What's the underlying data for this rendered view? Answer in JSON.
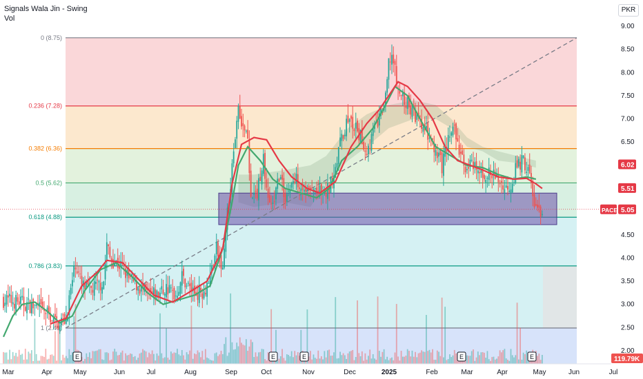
{
  "legend": {
    "title": "Signals Wala Jin - Swing",
    "vol": "Vol"
  },
  "currency": "PKR",
  "colors": {
    "up": "#26a69a",
    "down": "#ef5350",
    "ma": "#e53946",
    "ema": "#43a86f",
    "zone": "#7a5fb5",
    "trend": "#787b86"
  },
  "chart_data": {
    "type": "candlestick",
    "title": "Signals Wala Jin - Swing",
    "currency": "PKR",
    "x_ticks": [
      "Mar",
      "Apr",
      "May",
      "Jun",
      "Jul",
      "Aug",
      "Sep",
      "Oct",
      "Nov",
      "Dec",
      "2025",
      "Feb",
      "Mar",
      "Apr",
      "May",
      "Jun",
      "Jul"
    ],
    "y_ticks": [
      2.0,
      2.5,
      3.0,
      3.5,
      4.0,
      4.5,
      5.0,
      5.5,
      6.0,
      6.5,
      7.0,
      7.5,
      8.0,
      8.5,
      9.0
    ],
    "ylim": [
      2.0,
      9.0
    ],
    "fib_levels": [
      {
        "ratio": "0",
        "value": 8.75,
        "label": "0 (8.75)",
        "color": "#787b86",
        "zone": "#f8c9cc"
      },
      {
        "ratio": "0.236",
        "value": 7.28,
        "label": "0.236 (7.28)",
        "color": "#e53946",
        "zone": "#fbe0bd"
      },
      {
        "ratio": "0.382",
        "value": 6.36,
        "label": "0.382 (6.36)",
        "color": "#f57c00",
        "zone": "#d9edd2"
      },
      {
        "ratio": "0.5",
        "value": 5.62,
        "label": "0.5 (5.62)",
        "color": "#43a86f",
        "zone": "#cbebd8"
      },
      {
        "ratio": "0.618",
        "value": 4.88,
        "label": "0.618 (4.88)",
        "color": "#089981",
        "zone": "#c7ecef"
      },
      {
        "ratio": "0.786",
        "value": 3.83,
        "label": "0.786 (3.83)",
        "color": "#089981",
        "zone": "#c7ecef"
      },
      {
        "ratio": "1",
        "value": 2.49,
        "label": "1 (2.49)",
        "color": "#787b86",
        "zone": "#c9daf8"
      }
    ],
    "support_zone": {
      "low": 4.72,
      "high": 5.4
    },
    "price_labels": [
      {
        "text": "6.02",
        "value": 6.02,
        "color": "#e53946"
      },
      {
        "text": "5.51",
        "value": 5.51,
        "color": "#e53946"
      },
      {
        "text": "5.05",
        "value": 5.05,
        "color": "#e53946",
        "tag": "PACE"
      }
    ],
    "volume_label": "119.79K",
    "earnings_markers": [
      "E",
      "E",
      "E",
      "E",
      "E"
    ],
    "candle_keypoints": [
      [
        0,
        3.1
      ],
      [
        10,
        3.05
      ],
      [
        20,
        2.95
      ],
      [
        28,
        2.8
      ],
      [
        34,
        2.6
      ],
      [
        40,
        2.7
      ],
      [
        44,
        3.5
      ],
      [
        46,
        3.9
      ],
      [
        50,
        3.4
      ],
      [
        55,
        3.3
      ],
      [
        60,
        3.4
      ],
      [
        64,
        3.5
      ],
      [
        66,
        4.3
      ],
      [
        68,
        4.0
      ],
      [
        72,
        3.9
      ],
      [
        76,
        3.8
      ],
      [
        80,
        3.55
      ],
      [
        86,
        3.4
      ],
      [
        92,
        3.2
      ],
      [
        98,
        3.2
      ],
      [
        104,
        3.35
      ],
      [
        110,
        3.2
      ],
      [
        114,
        3.6
      ],
      [
        118,
        3.4
      ],
      [
        122,
        3.25
      ],
      [
        128,
        3.3
      ],
      [
        132,
        3.6
      ],
      [
        136,
        4.2
      ],
      [
        140,
        3.7
      ],
      [
        142,
        4.7
      ],
      [
        144,
        5.3
      ],
      [
        146,
        6.0
      ],
      [
        148,
        6.5
      ],
      [
        150,
        7.3
      ],
      [
        152,
        7.0
      ],
      [
        156,
        6.5
      ],
      [
        158,
        5.2
      ],
      [
        162,
        5.4
      ],
      [
        166,
        6.2
      ],
      [
        168,
        5.4
      ],
      [
        172,
        5.1
      ],
      [
        176,
        5.8
      ],
      [
        180,
        5.3
      ],
      [
        184,
        5.6
      ],
      [
        188,
        5.7
      ],
      [
        192,
        5.5
      ],
      [
        196,
        5.4
      ],
      [
        200,
        5.5
      ],
      [
        204,
        5.3
      ],
      [
        208,
        5.5
      ],
      [
        212,
        6.0
      ],
      [
        216,
        6.6
      ],
      [
        220,
        7.0
      ],
      [
        224,
        6.8
      ],
      [
        228,
        6.6
      ],
      [
        232,
        6.3
      ],
      [
        236,
        6.7
      ],
      [
        240,
        7.0
      ],
      [
        244,
        7.4
      ],
      [
        246,
        8.2
      ],
      [
        248,
        8.4
      ],
      [
        250,
        8.0
      ],
      [
        252,
        7.6
      ],
      [
        256,
        7.4
      ],
      [
        260,
        7.2
      ],
      [
        264,
        7.0
      ],
      [
        268,
        6.8
      ],
      [
        272,
        6.6
      ],
      [
        276,
        6.2
      ],
      [
        280,
        6.0
      ],
      [
        284,
        6.6
      ],
      [
        288,
        6.8
      ],
      [
        290,
        6.4
      ],
      [
        294,
        6.0
      ],
      [
        298,
        6.0
      ],
      [
        304,
        5.8
      ],
      [
        310,
        5.8
      ],
      [
        316,
        5.7
      ],
      [
        320,
        5.5
      ],
      [
        324,
        5.6
      ],
      [
        328,
        6.0
      ],
      [
        332,
        6.1
      ],
      [
        336,
        5.8
      ],
      [
        338,
        5.3
      ],
      [
        340,
        5.1
      ],
      [
        342,
        4.98
      ],
      [
        344,
        5.05
      ]
    ],
    "ma_keypoints": [
      [
        30,
        2.58
      ],
      [
        40,
        2.7
      ],
      [
        50,
        3.4
      ],
      [
        60,
        3.7
      ],
      [
        66,
        3.95
      ],
      [
        76,
        3.9
      ],
      [
        86,
        3.55
      ],
      [
        96,
        3.2
      ],
      [
        108,
        3.05
      ],
      [
        118,
        3.25
      ],
      [
        130,
        3.5
      ],
      [
        140,
        4.2
      ],
      [
        146,
        5.6
      ],
      [
        152,
        6.45
      ],
      [
        160,
        6.6
      ],
      [
        168,
        6.55
      ],
      [
        176,
        6.1
      ],
      [
        184,
        5.75
      ],
      [
        194,
        5.5
      ],
      [
        202,
        5.4
      ],
      [
        212,
        5.65
      ],
      [
        222,
        6.4
      ],
      [
        232,
        6.9
      ],
      [
        240,
        7.2
      ],
      [
        246,
        7.5
      ],
      [
        252,
        7.8
      ],
      [
        258,
        7.7
      ],
      [
        266,
        7.4
      ],
      [
        274,
        7.0
      ],
      [
        282,
        6.4
      ],
      [
        290,
        6.1
      ],
      [
        298,
        6.0
      ],
      [
        306,
        5.9
      ],
      [
        316,
        5.75
      ],
      [
        326,
        5.7
      ],
      [
        334,
        5.72
      ],
      [
        340,
        5.6
      ],
      [
        344,
        5.5
      ]
    ],
    "ema_keypoints": [
      [
        0,
        2.3
      ],
      [
        6,
        2.75
      ],
      [
        12,
        3.0
      ],
      [
        20,
        3.05
      ],
      [
        28,
        2.85
      ],
      [
        36,
        2.6
      ],
      [
        44,
        2.75
      ],
      [
        52,
        3.3
      ],
      [
        62,
        3.75
      ],
      [
        72,
        3.9
      ],
      [
        82,
        3.6
      ],
      [
        92,
        3.25
      ],
      [
        102,
        3.0
      ],
      [
        112,
        3.1
      ],
      [
        122,
        3.2
      ],
      [
        132,
        3.4
      ],
      [
        140,
        4.2
      ],
      [
        146,
        5.2
      ],
      [
        150,
        6.0
      ],
      [
        156,
        6.4
      ],
      [
        164,
        6.1
      ],
      [
        172,
        5.7
      ],
      [
        180,
        5.5
      ],
      [
        190,
        5.4
      ],
      [
        200,
        5.3
      ],
      [
        208,
        5.5
      ],
      [
        216,
        6.1
      ],
      [
        226,
        6.4
      ],
      [
        236,
        6.8
      ],
      [
        244,
        7.3
      ],
      [
        250,
        7.7
      ],
      [
        258,
        7.5
      ],
      [
        266,
        7.0
      ],
      [
        276,
        6.4
      ],
      [
        286,
        6.2
      ],
      [
        296,
        6.0
      ],
      [
        306,
        5.95
      ],
      [
        316,
        5.8
      ],
      [
        326,
        5.7
      ],
      [
        334,
        5.75
      ],
      [
        340,
        5.7
      ]
    ],
    "cloud_keypoints": [
      [
        150,
        5.2,
        5.8
      ],
      [
        160,
        5.1,
        5.8
      ],
      [
        180,
        5.2,
        5.9
      ],
      [
        196,
        5.1,
        6.0
      ],
      [
        206,
        5.6,
        6.2
      ],
      [
        220,
        6.1,
        6.8
      ],
      [
        232,
        6.4,
        7.1
      ],
      [
        246,
        6.8,
        7.3
      ],
      [
        262,
        7.0,
        7.4
      ],
      [
        276,
        7.0,
        7.3
      ],
      [
        286,
        6.8,
        7.0
      ],
      [
        296,
        6.4,
        6.6
      ],
      [
        306,
        6.3,
        6.4
      ],
      [
        316,
        6.1,
        6.3
      ],
      [
        328,
        6.05,
        6.2
      ],
      [
        340,
        5.95,
        6.1
      ]
    ]
  }
}
